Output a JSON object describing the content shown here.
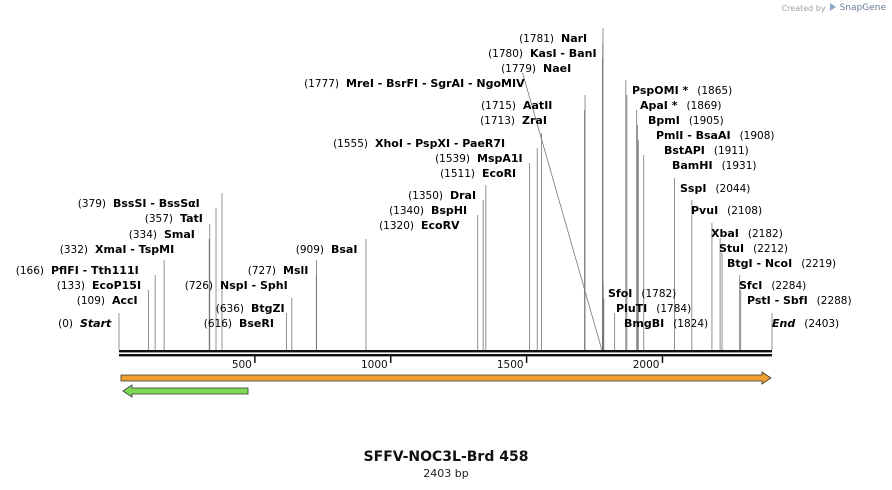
{
  "credit": {
    "prefix": "Created by",
    "brand": "SnapGene"
  },
  "plasmid": {
    "name": "SFFV-NOC3L-Brd 458",
    "length_label": "2403 bp",
    "length": 2403
  },
  "scale_ticks": [
    {
      "value": 500,
      "label": "500"
    },
    {
      "value": 1000,
      "label": "1000"
    },
    {
      "value": 1500,
      "label": "1500"
    },
    {
      "value": 2000,
      "label": "2000"
    }
  ],
  "colors": {
    "backbone": "#111111",
    "feature_orange": "#f0a030",
    "feature_green": "#7ed957",
    "leader": "#777777"
  },
  "features": [
    {
      "name": "orange-arrow",
      "start": 0,
      "end": 2403,
      "direction": "forward",
      "color": "#f0a030"
    },
    {
      "name": "green-arrow",
      "start": 0,
      "end": 480,
      "direction": "reverse",
      "color": "#7ed957"
    }
  ],
  "labels": [
    {
      "pos": 0,
      "pos_label": "(0)",
      "names": "Start",
      "italic": true,
      "side": "left"
    },
    {
      "pos": 109,
      "pos_label": "(109)",
      "names": "AccI",
      "side": "left"
    },
    {
      "pos": 133,
      "pos_label": "(133)",
      "names": "EcoP15I",
      "side": "left"
    },
    {
      "pos": 166,
      "pos_label": "(166)",
      "names": "PflFI  -  Tth111I",
      "side": "left"
    },
    {
      "pos": 332,
      "pos_label": "(332)",
      "names": "XmaI  -  TspMI",
      "side": "left"
    },
    {
      "pos": 334,
      "pos_label": "(334)",
      "names": "SmaI",
      "side": "left"
    },
    {
      "pos": 357,
      "pos_label": "(357)",
      "names": "TatI",
      "side": "left"
    },
    {
      "pos": 379,
      "pos_label": "(379)",
      "names": "BssSI  -  BssSαI",
      "side": "left"
    },
    {
      "pos": 616,
      "pos_label": "(616)",
      "names": "BseRI",
      "side": "left"
    },
    {
      "pos": 636,
      "pos_label": "(636)",
      "names": "BtgZI",
      "side": "left"
    },
    {
      "pos": 726,
      "pos_label": "(726)",
      "names": "NspI  -  SphI",
      "side": "left"
    },
    {
      "pos": 727,
      "pos_label": "(727)",
      "names": "MslI",
      "side": "left"
    },
    {
      "pos": 909,
      "pos_label": "(909)",
      "names": "BsaI",
      "side": "left"
    },
    {
      "pos": 1320,
      "pos_label": "(1320)",
      "names": "EcoRV",
      "side": "left"
    },
    {
      "pos": 1340,
      "pos_label": "(1340)",
      "names": "BspHI",
      "side": "left"
    },
    {
      "pos": 1350,
      "pos_label": "(1350)",
      "names": "DraI",
      "side": "left"
    },
    {
      "pos": 1511,
      "pos_label": "(1511)",
      "names": "EcoRI",
      "side": "left"
    },
    {
      "pos": 1539,
      "pos_label": "(1539)",
      "names": "MspA1I",
      "side": "left"
    },
    {
      "pos": 1555,
      "pos_label": "(1555)",
      "names": "XhoI  -  PspXI  -  PaeR7I",
      "side": "left"
    },
    {
      "pos": 1713,
      "pos_label": "(1713)",
      "names": "ZraI",
      "side": "left"
    },
    {
      "pos": 1715,
      "pos_label": "(1715)",
      "names": "AatII",
      "side": "left"
    },
    {
      "pos": 1777,
      "pos_label": "(1777)",
      "names": "MreI  -  BsrFI  -  SgrAI  -  NgoMIV",
      "side": "left"
    },
    {
      "pos": 1779,
      "pos_label": "(1779)",
      "names": "NaeI",
      "side": "left"
    },
    {
      "pos": 1780,
      "pos_label": "(1780)",
      "names": "KasI  -  BanI",
      "side": "left"
    },
    {
      "pos": 1781,
      "pos_label": "(1781)",
      "names": "NarI",
      "side": "left"
    },
    {
      "pos": 1782,
      "pos_label": "(1782)",
      "names": "SfoI",
      "side": "right"
    },
    {
      "pos": 1784,
      "pos_label": "(1784)",
      "names": "PluTI",
      "side": "right"
    },
    {
      "pos": 1824,
      "pos_label": "(1824)",
      "names": "BmgBI",
      "side": "right"
    },
    {
      "pos": 1865,
      "pos_label": "(1865)",
      "names": "PspOMI *",
      "side": "right"
    },
    {
      "pos": 1869,
      "pos_label": "(1869)",
      "names": "ApaI *",
      "side": "right"
    },
    {
      "pos": 1905,
      "pos_label": "(1905)",
      "names": "BpmI",
      "side": "right"
    },
    {
      "pos": 1908,
      "pos_label": "(1908)",
      "names": "PmlI  -  BsaAI",
      "side": "right"
    },
    {
      "pos": 1911,
      "pos_label": "(1911)",
      "names": "BstAPI",
      "side": "right"
    },
    {
      "pos": 1931,
      "pos_label": "(1931)",
      "names": "BamHI",
      "side": "right"
    },
    {
      "pos": 2044,
      "pos_label": "(2044)",
      "names": "SspI",
      "side": "right"
    },
    {
      "pos": 2108,
      "pos_label": "(2108)",
      "names": "PvuI",
      "side": "right"
    },
    {
      "pos": 2182,
      "pos_label": "(2182)",
      "names": "XbaI",
      "side": "right"
    },
    {
      "pos": 2212,
      "pos_label": "(2212)",
      "names": "StuI",
      "side": "right"
    },
    {
      "pos": 2219,
      "pos_label": "(2219)",
      "names": "BtgI  -  NcoI",
      "side": "right"
    },
    {
      "pos": 2284,
      "pos_label": "(2284)",
      "names": "SfcI",
      "side": "right"
    },
    {
      "pos": 2288,
      "pos_label": "(2288)",
      "names": "PstI  -  SbfI",
      "side": "right"
    },
    {
      "pos": 2403,
      "pos_label": "(2403)",
      "names": "End",
      "italic": true,
      "side": "right"
    }
  ]
}
